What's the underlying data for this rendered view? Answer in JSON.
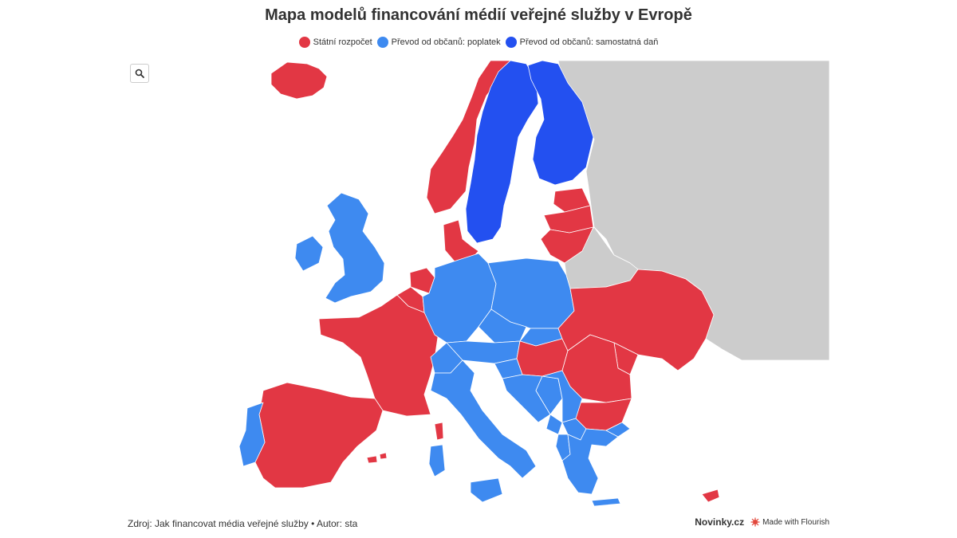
{
  "title": "Mapa modelů financování médií veřejné služby v Evropě",
  "legend": [
    {
      "label": "Státní rozpočet",
      "color": "#e23744"
    },
    {
      "label": "Převod od občanů: poplatek",
      "color": "#3e8af0"
    },
    {
      "label": "Převod od občanů: samostatná daň",
      "color": "#2350f0"
    }
  ],
  "map_colors": {
    "no_data": "#cccccc",
    "state_budget": "#e23744",
    "license_fee": "#3e8af0",
    "separate_tax": "#2350f0"
  },
  "zoom_button": {
    "icon": "search-icon"
  },
  "footer": {
    "source": "Zdroj: Jak financovat média veřejné služby • Autor: sta",
    "brand": "Novinky.cz",
    "made_with": "Made with Flourish"
  }
}
